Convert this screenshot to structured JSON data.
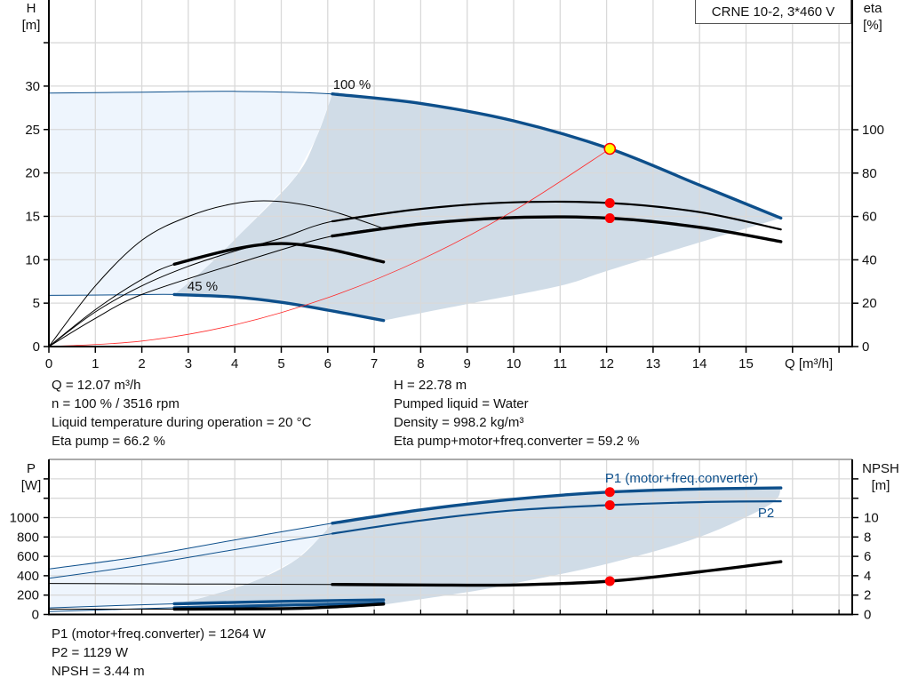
{
  "chart_data": [
    {
      "type": "line",
      "title": "CRNE 10-2, 3*460 V",
      "xlabel": "Q [m³/h]",
      "ylabel": "H",
      "ylabel_unit": "[m]",
      "y2label": "eta",
      "y2label_unit": "[%]",
      "xlim": [
        0,
        17.3
      ],
      "ylim": [
        0,
        40
      ],
      "y2lim": [
        0,
        160
      ],
      "x_ticks": [
        0,
        1,
        2,
        3,
        4,
        5,
        6,
        7,
        8,
        9,
        10,
        11,
        12,
        13,
        14,
        15
      ],
      "y_ticks": [
        0,
        5,
        10,
        15,
        20,
        25,
        30
      ],
      "y2_ticks": [
        0,
        20,
        40,
        60,
        80,
        100
      ],
      "grid": true,
      "colors": {
        "head": "#0d4f8b",
        "eta": "#000000",
        "system": "#ff2a2a",
        "operating_fill": "#d0dce7",
        "extended_fill": "#eef5fd",
        "grid": "#d9d9d9"
      },
      "curve_labels": [
        "100 %",
        "45 %"
      ],
      "series": [
        {
          "name": "100 %",
          "axis": "H",
          "color": "#0d4f8b",
          "operating_range": [
            6.1,
            15.75
          ],
          "x": [
            0,
            2,
            4,
            6.1,
            8,
            10,
            12.07,
            14,
            15.75
          ],
          "y": [
            29.2,
            29.3,
            29.4,
            29.1,
            28.0,
            26.0,
            22.78,
            18.6,
            14.8
          ]
        },
        {
          "name": "45 %",
          "axis": "H",
          "color": "#0d4f8b",
          "operating_range": [
            2.7,
            7.2
          ],
          "x": [
            0,
            1.5,
            2.7,
            4,
            5,
            6,
            7.2
          ],
          "y": [
            5.9,
            5.95,
            6.0,
            5.7,
            5.1,
            4.2,
            3.0
          ]
        },
        {
          "axis": "eta",
          "color": "#000000",
          "operating_range": [
            6.1,
            15.75
          ],
          "x": [
            0,
            1,
            2,
            3,
            4,
            5,
            6.1,
            8,
            10,
            12.07,
            14,
            15.75
          ],
          "y": [
            0,
            16,
            28,
            37,
            44,
            50,
            57.8,
            63.5,
            66.5,
            66.2,
            62,
            54
          ]
        },
        {
          "axis": "eta",
          "color": "#000000",
          "operating_range": [
            6.1,
            15.75
          ],
          "x": [
            0,
            1,
            2,
            4,
            6.1,
            8,
            10,
            12.07,
            14,
            15.75
          ],
          "y": [
            0,
            13,
            24,
            38,
            51,
            56.5,
            59.5,
            59.2,
            55,
            48.4
          ]
        },
        {
          "axis": "eta",
          "color": "#000000",
          "x": [
            0,
            1,
            2,
            3,
            4,
            4.9,
            6,
            7.2
          ],
          "y": [
            0,
            28,
            49,
            60,
            66,
            67,
            63,
            54.5
          ]
        },
        {
          "axis": "eta",
          "color": "#000000",
          "operating_range": [
            2.7,
            7.2
          ],
          "x": [
            0,
            1,
            2,
            2.7,
            4,
            5,
            6,
            7.2
          ],
          "y": [
            0,
            17,
            31,
            38,
            45,
            47.5,
            45,
            39
          ]
        },
        {
          "axis": "H",
          "color": "#ff2a2a",
          "type": "system",
          "x": [
            0,
            2,
            4,
            6,
            8,
            10,
            12.07
          ],
          "y": [
            0,
            0.63,
            2.5,
            5.63,
            10.0,
            15.64,
            22.78
          ]
        }
      ],
      "operating_region": {
        "left_boundary": {
          "x": [
            2.7,
            3.4,
            4.05,
            5.3,
            5.75,
            6.1
          ],
          "y": [
            6.0,
            9.2,
            12.6,
            19.5,
            24.0,
            29.1
          ]
        },
        "lower_boundary": {
          "x": [
            7.2,
            9,
            11,
            12,
            14,
            15.75
          ],
          "y": [
            3.0,
            4.9,
            7.0,
            8.7,
            12.0,
            14.8
          ]
        }
      },
      "markers": [
        {
          "x": 12.07,
          "y": 22.78,
          "axis": "H",
          "style": "operating-point",
          "color": "#ffff00"
        },
        {
          "x": 12.07,
          "y": 66.2,
          "axis": "eta",
          "color": "#ff0000"
        },
        {
          "x": 12.07,
          "y": 59.2,
          "axis": "eta",
          "color": "#ff0000"
        }
      ]
    },
    {
      "type": "line",
      "ylabel": "P",
      "ylabel_unit": "[W]",
      "y2label": "NPSH",
      "y2label_unit": "[m]",
      "xlim": [
        0,
        17.3
      ],
      "ylim": [
        0,
        1600
      ],
      "y2lim": [
        0,
        16
      ],
      "y_ticks": [
        0,
        200,
        400,
        600,
        800,
        1000
      ],
      "y2_ticks": [
        0,
        2,
        4,
        6,
        8,
        10
      ],
      "grid": true,
      "series": [
        {
          "name": "P1 (motor+freq.converter)",
          "axis": "P",
          "color": "#0d4f8b",
          "operating_range": [
            6.1,
            15.75
          ],
          "x": [
            0,
            2,
            4,
            6.1,
            8,
            10,
            12.07,
            14,
            15.75
          ],
          "y": [
            470,
            600,
            770,
            942,
            1080,
            1190,
            1264,
            1295,
            1306
          ]
        },
        {
          "name": "P2",
          "axis": "P",
          "color": "#0d4f8b",
          "operating_range": [
            6.1,
            15.75
          ],
          "x": [
            0,
            2,
            4,
            6.1,
            8,
            10,
            12.07,
            14,
            15.75
          ],
          "y": [
            373,
            510,
            670,
            835,
            970,
            1075,
            1129,
            1160,
            1169
          ]
        },
        {
          "axis": "NPSH",
          "color": "#000000",
          "operating_range": [
            6.1,
            15.75
          ],
          "x": [
            0,
            3,
            6.1,
            8,
            10,
            12.07,
            14,
            15.75
          ],
          "y": [
            3.2,
            3.15,
            3.1,
            3.05,
            3.05,
            3.44,
            4.4,
            5.45
          ]
        },
        {
          "axis": "P",
          "color": "#0d4f8b",
          "operating_range": [
            2.7,
            7.2
          ],
          "x": [
            0,
            2.7,
            5,
            7.2
          ],
          "y": [
            68,
            110,
            135,
            150
          ]
        },
        {
          "axis": "P",
          "color": "#0d4f8b",
          "operating_range": [
            2.7,
            7.2
          ],
          "x": [
            0,
            2.7,
            5,
            7.2
          ],
          "y": [
            30,
            70,
            95,
            118
          ]
        },
        {
          "axis": "NPSH",
          "color": "#000000",
          "operating_range": [
            2.7,
            7.2
          ],
          "x": [
            0,
            2.7,
            5,
            6,
            7.2
          ],
          "y": [
            0.55,
            0.55,
            0.6,
            0.75,
            1.07
          ]
        }
      ],
      "operating_region": {
        "left_boundary": {
          "x": [
            2.7,
            3.5,
            4.5,
            5.3,
            5.8,
            6.1
          ],
          "y": [
            110,
            200,
            360,
            560,
            780,
            942
          ]
        },
        "lower_boundary": {
          "x": [
            7.2,
            9,
            10,
            12.07,
            14,
            15.5,
            15.75
          ],
          "y": [
            100,
            230,
            320,
            530,
            800,
            1130,
            1306
          ]
        }
      },
      "markers": [
        {
          "x": 12.07,
          "y": 1264,
          "axis": "P",
          "color": "#ff0000"
        },
        {
          "x": 12.07,
          "y": 1129,
          "axis": "P",
          "color": "#ff0000"
        },
        {
          "x": 12.07,
          "y": 3.44,
          "axis": "NPSH",
          "color": "#ff0000"
        }
      ]
    }
  ],
  "duty_info": {
    "left": [
      "Q = 12.07 m³/h",
      "n = 100 % / 3516 rpm",
      "Liquid temperature during operation = 20 °C",
      "Eta pump = 66.2 %"
    ],
    "right": [
      "H = 22.78 m",
      "Pumped liquid = Water",
      "Density = 998.2 kg/m³",
      "Eta pump+motor+freq.converter = 59.2 %"
    ]
  },
  "power_info": [
    "P1 (motor+freq.converter) = 1264 W",
    "P2 = 1129 W",
    "NPSH = 3.44 m"
  ]
}
